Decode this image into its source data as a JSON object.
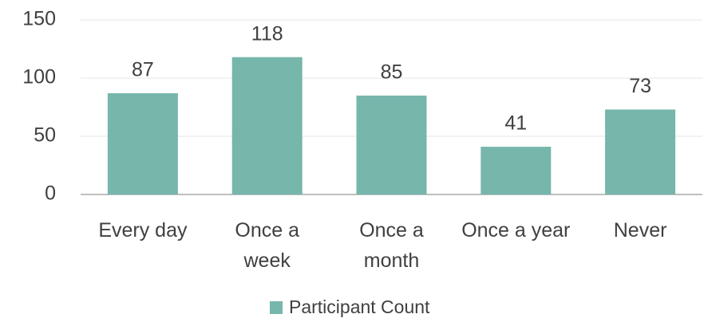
{
  "chart_data": {
    "type": "bar",
    "categories": [
      "Every day",
      "Once a week",
      "Once a month",
      "Once a year",
      "Never"
    ],
    "series": [
      {
        "name": "Participant Count",
        "color": "#76b6ab",
        "values": [
          87,
          118,
          85,
          41,
          73
        ]
      }
    ],
    "ylim": [
      0,
      150
    ],
    "yticks": [
      0,
      50,
      100,
      150
    ],
    "grid": true,
    "legend": "bottom",
    "data_labels": true
  }
}
